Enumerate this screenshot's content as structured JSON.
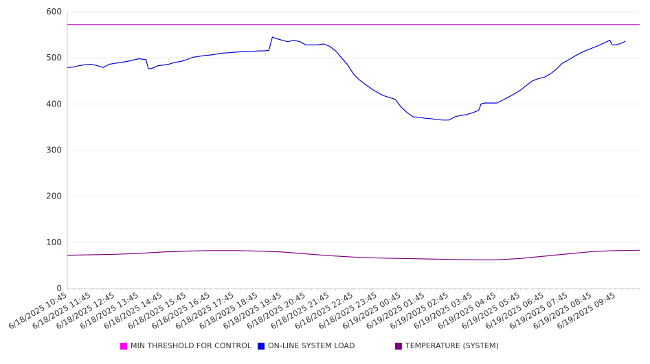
{
  "chart_data": {
    "type": "line",
    "ylim": [
      0,
      600
    ],
    "yticks": [
      0,
      100,
      200,
      300,
      400,
      500,
      600
    ],
    "grid": true,
    "legend_position": "bottom",
    "x_labels": [
      "6/18/2025 10:45",
      "6/18/2025 11:45",
      "6/18/2025 12:45",
      "6/18/2025 13:45",
      "6/18/2025 14:45",
      "6/18/2025 15:45",
      "6/18/2025 16:45",
      "6/18/2025 17:45",
      "6/18/2025 18:45",
      "6/18/2025 19:45",
      "6/18/2025 20:45",
      "6/18/2025 21:45",
      "6/18/2025 22:45",
      "6/18/2025 23:45",
      "6/19/2025 00:45",
      "6/19/2025 01:45",
      "6/19/2025 02:45",
      "6/19/2025 03:45",
      "6/19/2025 04:45",
      "6/19/2025 05:45",
      "6/19/2025 06:45",
      "6/19/2025 07:45",
      "6/19/2025 08:45",
      "6/19/2025 09:45"
    ],
    "x_extent_hours": [
      0,
      24
    ],
    "series": [
      {
        "name": "MIN THRESHOLD FOR CONTROL",
        "color": "#c000c0",
        "legend_color": "#ff00ff",
        "points": [
          [
            0,
            572
          ],
          [
            24,
            572
          ]
        ]
      },
      {
        "name": "ON-LINE SYSTEM LOAD",
        "color": "#0000dd",
        "legend_color": "#0000ee",
        "points": [
          [
            0,
            479
          ],
          [
            0.25,
            480
          ],
          [
            0.5,
            483
          ],
          [
            0.75,
            485
          ],
          [
            1.0,
            486
          ],
          [
            1.25,
            483
          ],
          [
            1.5,
            479
          ],
          [
            1.75,
            486
          ],
          [
            2.0,
            488
          ],
          [
            2.25,
            490
          ],
          [
            2.5,
            492
          ],
          [
            2.75,
            495
          ],
          [
            3.0,
            498
          ],
          [
            3.3,
            496
          ],
          [
            3.4,
            476
          ],
          [
            3.6,
            478
          ],
          [
            3.8,
            483
          ],
          [
            4.0,
            484
          ],
          [
            4.25,
            486
          ],
          [
            4.5,
            490
          ],
          [
            4.75,
            492
          ],
          [
            5.0,
            496
          ],
          [
            5.25,
            501
          ],
          [
            5.5,
            503
          ],
          [
            5.75,
            505
          ],
          [
            6.0,
            506
          ],
          [
            6.25,
            508
          ],
          [
            6.5,
            510
          ],
          [
            6.75,
            511
          ],
          [
            7.0,
            512
          ],
          [
            7.25,
            513
          ],
          [
            7.5,
            513
          ],
          [
            7.75,
            514
          ],
          [
            8.0,
            515
          ],
          [
            8.25,
            515
          ],
          [
            8.45,
            516
          ],
          [
            8.6,
            545
          ],
          [
            8.75,
            542
          ],
          [
            9.0,
            538
          ],
          [
            9.25,
            535
          ],
          [
            9.5,
            538
          ],
          [
            9.75,
            535
          ],
          [
            10.0,
            528
          ],
          [
            10.25,
            528
          ],
          [
            10.5,
            528
          ],
          [
            10.75,
            530
          ],
          [
            11.0,
            525
          ],
          [
            11.25,
            515
          ],
          [
            11.5,
            500
          ],
          [
            11.75,
            485
          ],
          [
            12.0,
            465
          ],
          [
            12.25,
            452
          ],
          [
            12.5,
            442
          ],
          [
            12.75,
            433
          ],
          [
            13.0,
            425
          ],
          [
            13.25,
            418
          ],
          [
            13.5,
            414
          ],
          [
            13.75,
            410
          ],
          [
            14.0,
            393
          ],
          [
            14.25,
            381
          ],
          [
            14.5,
            372
          ],
          [
            14.75,
            371
          ],
          [
            15.0,
            369
          ],
          [
            15.25,
            368
          ],
          [
            15.5,
            366
          ],
          [
            15.75,
            365
          ],
          [
            16.0,
            365
          ],
          [
            16.25,
            372
          ],
          [
            16.5,
            375
          ],
          [
            16.75,
            377
          ],
          [
            17.0,
            381
          ],
          [
            17.25,
            386
          ],
          [
            17.35,
            400
          ],
          [
            17.5,
            402
          ],
          [
            17.75,
            402
          ],
          [
            18.0,
            402
          ],
          [
            18.25,
            408
          ],
          [
            18.5,
            415
          ],
          [
            18.75,
            422
          ],
          [
            19.0,
            430
          ],
          [
            19.25,
            440
          ],
          [
            19.5,
            450
          ],
          [
            19.75,
            455
          ],
          [
            20.0,
            458
          ],
          [
            20.25,
            465
          ],
          [
            20.5,
            475
          ],
          [
            20.75,
            488
          ],
          [
            21.0,
            495
          ],
          [
            21.25,
            503
          ],
          [
            21.5,
            510
          ],
          [
            21.75,
            516
          ],
          [
            22.0,
            521
          ],
          [
            22.25,
            526
          ],
          [
            22.5,
            532
          ],
          [
            22.75,
            538
          ],
          [
            22.85,
            528
          ],
          [
            23.0,
            528
          ],
          [
            23.25,
            532
          ],
          [
            23.4,
            536
          ]
        ]
      },
      {
        "name": "TEMPERATURE (SYSTEM)",
        "color": "#800080",
        "legend_color": "#800080",
        "points": [
          [
            0,
            72
          ],
          [
            1.0,
            73
          ],
          [
            2.0,
            74
          ],
          [
            3.0,
            76
          ],
          [
            4.0,
            79
          ],
          [
            5.0,
            81
          ],
          [
            6.0,
            82
          ],
          [
            7.0,
            82
          ],
          [
            8.0,
            81
          ],
          [
            9.0,
            79
          ],
          [
            10.0,
            75
          ],
          [
            11.0,
            71
          ],
          [
            12.0,
            68
          ],
          [
            13.0,
            66
          ],
          [
            14.0,
            65
          ],
          [
            15.0,
            64
          ],
          [
            16.0,
            63
          ],
          [
            17.0,
            62
          ],
          [
            18.0,
            62
          ],
          [
            19.0,
            65
          ],
          [
            20.0,
            70
          ],
          [
            21.0,
            75
          ],
          [
            22.0,
            80
          ],
          [
            23.0,
            82
          ],
          [
            24.0,
            83
          ]
        ]
      }
    ]
  }
}
